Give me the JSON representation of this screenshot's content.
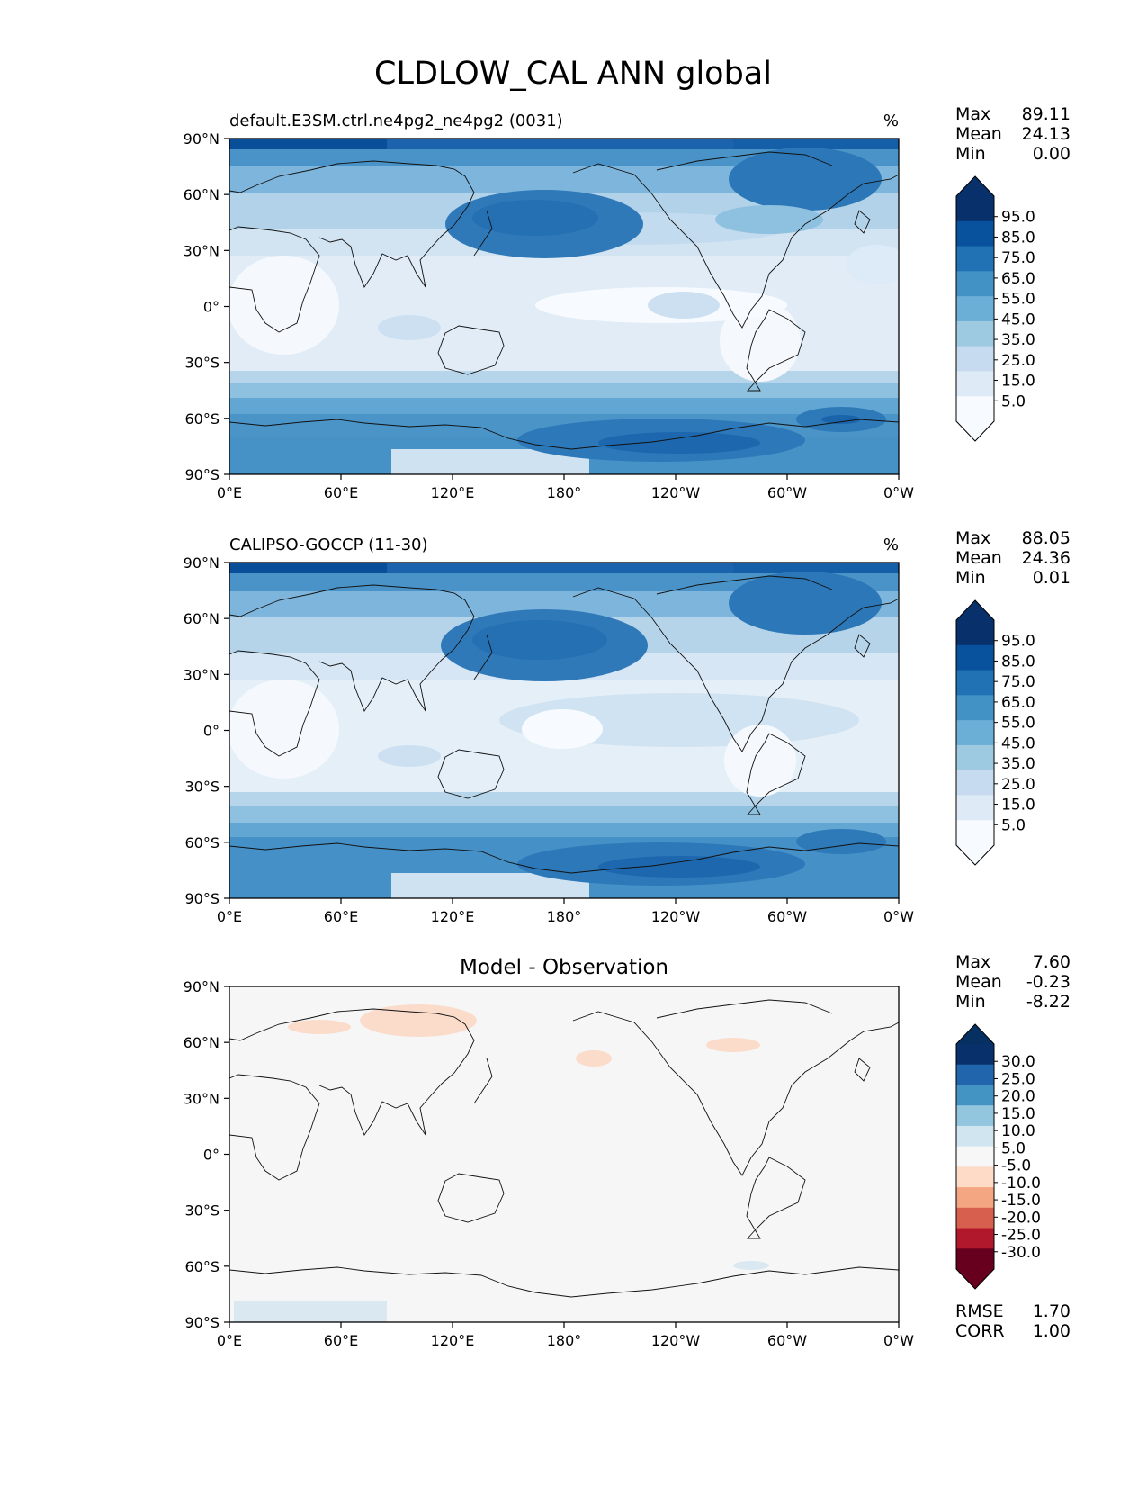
{
  "title": "CLDLOW_CAL ANN global",
  "lon_ticks": [
    "0°E",
    "60°E",
    "120°E",
    "180°",
    "120°W",
    "60°W",
    "0°W"
  ],
  "lat_ticks": [
    "90°N",
    "60°N",
    "30°N",
    "0°",
    "30°S",
    "60°S",
    "90°S"
  ],
  "panels": [
    {
      "id": "model",
      "left_title": "default.E3SM.ctrl.ne4pg2_ne4pg2 (0031)",
      "center_title": "",
      "units": "%",
      "stats": [
        {
          "label": "Max",
          "value": "89.11"
        },
        {
          "label": "Mean",
          "value": "24.13"
        },
        {
          "label": "Min",
          "value": "0.00"
        }
      ],
      "colorbar": {
        "labels": [
          "95.0",
          "85.0",
          "75.0",
          "65.0",
          "55.0",
          "45.0",
          "35.0",
          "25.0",
          "15.0",
          "5.0"
        ],
        "colors": [
          "#08306b",
          "#08519c",
          "#2171b5",
          "#4292c6",
          "#6baed6",
          "#9ecae1",
          "#c6dbef",
          "#deebf7",
          "#f7fbff"
        ],
        "over": "#08306b",
        "under": "#f7fbff"
      },
      "footer": []
    },
    {
      "id": "obs",
      "left_title": "CALIPSO-GOCCP (11-30)",
      "center_title": "",
      "units": "%",
      "stats": [
        {
          "label": "Max",
          "value": "88.05"
        },
        {
          "label": "Mean",
          "value": "24.36"
        },
        {
          "label": "Min",
          "value": "0.01"
        }
      ],
      "colorbar": {
        "labels": [
          "95.0",
          "85.0",
          "75.0",
          "65.0",
          "55.0",
          "45.0",
          "35.0",
          "25.0",
          "15.0",
          "5.0"
        ],
        "colors": [
          "#08306b",
          "#08519c",
          "#2171b5",
          "#4292c6",
          "#6baed6",
          "#9ecae1",
          "#c6dbef",
          "#deebf7",
          "#f7fbff"
        ],
        "over": "#08306b",
        "under": "#f7fbff"
      },
      "footer": []
    },
    {
      "id": "diff",
      "left_title": "",
      "center_title": "Model - Observation",
      "units": "",
      "stats": [
        {
          "label": "Max",
          "value": "7.60"
        },
        {
          "label": "Mean",
          "value": "-0.23"
        },
        {
          "label": "Min",
          "value": "-8.22"
        }
      ],
      "colorbar": {
        "labels": [
          "30.0",
          "25.0",
          "20.0",
          "15.0",
          "10.0",
          "5.0",
          "-5.0",
          "-10.0",
          "-15.0",
          "-20.0",
          "-25.0",
          "-30.0"
        ],
        "colors": [
          "#08306b",
          "#2166ac",
          "#4393c3",
          "#92c5de",
          "#d1e5f0",
          "#f7f7f7",
          "#fddbc7",
          "#f4a582",
          "#d6604d",
          "#b2182b",
          "#67001f"
        ],
        "over": "#053061",
        "under": "#67001f"
      },
      "footer": [
        {
          "label": "RMSE",
          "value": "1.70"
        },
        {
          "label": "CORR",
          "value": "1.00"
        }
      ]
    }
  ]
}
